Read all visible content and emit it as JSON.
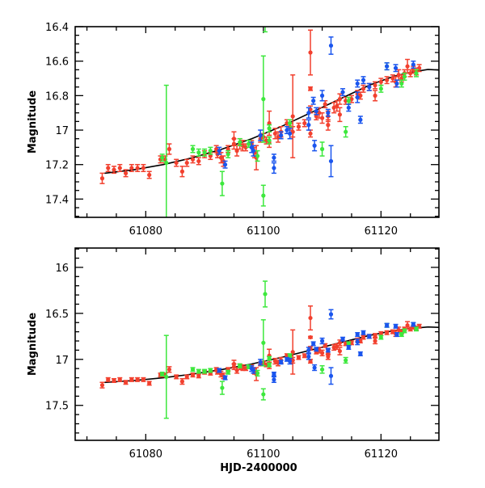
{
  "chart_data": {
    "type": "scatter",
    "xlabel": "HJD-2400000",
    "ylabel": "Magnitude",
    "x_ticks": [
      61080,
      61100,
      61120
    ],
    "x_tick_labels": [
      "61080",
      "61100",
      "61120"
    ],
    "xlim": [
      61068.0,
      61129.85
    ],
    "panels": [
      {
        "name": "top",
        "ylim": [
          16.4,
          17.506
        ],
        "y_inverted": true,
        "y_ticks": [
          16.4,
          16.6,
          16.8,
          17.0,
          17.2,
          17.4
        ],
        "y_tick_labels": [
          "16.4",
          "16.6",
          "16.8",
          "17",
          "17.2",
          "17.4"
        ],
        "y_minor_step": 0.05
      },
      {
        "name": "bottom",
        "ylim": [
          15.79,
          17.88
        ],
        "y_inverted": true,
        "y_ticks": [
          16.0,
          16.5,
          17.0,
          17.5
        ],
        "y_tick_labels": [
          "16",
          "16.5",
          "17",
          "17.5"
        ],
        "y_minor_step": 0.1
      }
    ],
    "x_minor_step": 5,
    "model_curve": {
      "name": "fit",
      "color": "#000000",
      "points": [
        [
          61073,
          17.25
        ],
        [
          61078,
          17.23
        ],
        [
          61083,
          17.2
        ],
        [
          61088,
          17.16
        ],
        [
          61093,
          17.11
        ],
        [
          61098,
          17.05
        ],
        [
          61103,
          16.98
        ],
        [
          61108,
          16.9
        ],
        [
          61113,
          16.82
        ],
        [
          61118,
          16.74
        ],
        [
          61122,
          16.69
        ],
        [
          61125,
          16.665
        ],
        [
          61128,
          16.648
        ],
        [
          61130,
          16.652
        ]
      ]
    },
    "series": [
      {
        "name": "red",
        "color": "#f2402e",
        "points_x_mag_err": [
          [
            61072.6,
            17.28,
            0.03
          ],
          [
            61073.6,
            17.22,
            0.02
          ],
          [
            61074.6,
            17.23,
            0.02
          ],
          [
            61075.6,
            17.22,
            0.02
          ],
          [
            61076.6,
            17.25,
            0.02
          ],
          [
            61077.6,
            17.22,
            0.02
          ],
          [
            61078.6,
            17.22,
            0.02
          ],
          [
            61079.6,
            17.22,
            0.02
          ],
          [
            61080.6,
            17.26,
            0.02
          ],
          [
            61082.5,
            17.17,
            0.02
          ],
          [
            61083.3,
            17.17,
            0.02
          ],
          [
            61084,
            17.11,
            0.03
          ],
          [
            61085.2,
            17.19,
            0.02
          ],
          [
            61086.2,
            17.24,
            0.03
          ],
          [
            61087,
            17.19,
            0.02
          ],
          [
            61088,
            17.17,
            0.02
          ],
          [
            61089,
            17.18,
            0.02
          ],
          [
            61090,
            17.14,
            0.02
          ],
          [
            61091,
            17.15,
            0.02
          ],
          [
            61092,
            17.11,
            0.02
          ],
          [
            61092.2,
            17.14,
            0.02
          ],
          [
            61092.8,
            17.16,
            0.03
          ],
          [
            61093.2,
            17.18,
            0.03
          ],
          [
            61094,
            17.11,
            0.02
          ],
          [
            61095,
            17.05,
            0.04
          ],
          [
            61095,
            17.08,
            0.03
          ],
          [
            61095.5,
            17.12,
            0.03
          ],
          [
            61096,
            17.08,
            0.03
          ],
          [
            61096.5,
            17.09,
            0.03
          ],
          [
            61097,
            17.1,
            0.02
          ],
          [
            61098,
            17.08,
            0.02
          ],
          [
            61098.5,
            17.13,
            0.03
          ],
          [
            61098.8,
            17.16,
            0.07
          ],
          [
            61099.5,
            17.05,
            0.02
          ],
          [
            61100,
            17.04,
            0.02
          ],
          [
            61100.5,
            17.06,
            0.02
          ],
          [
            61101,
            16.96,
            0.07
          ],
          [
            61101,
            17.07,
            0.03
          ],
          [
            61102,
            17.02,
            0.03
          ],
          [
            61102.5,
            17.04,
            0.03
          ],
          [
            61103,
            17.01,
            0.03
          ],
          [
            61104,
            16.96,
            0.02
          ],
          [
            61104.5,
            16.98,
            0.02
          ],
          [
            61105,
            16.92,
            0.24
          ],
          [
            61105,
            17.01,
            0.03
          ],
          [
            61106,
            16.98,
            0.02
          ],
          [
            61107,
            16.96,
            0.02
          ],
          [
            61108,
            16.55,
            0.13
          ],
          [
            61108,
            16.76,
            0.01
          ],
          [
            61108,
            16.88,
            0.02
          ],
          [
            61108,
            17.02,
            0.02
          ],
          [
            61109,
            16.92,
            0.02
          ],
          [
            61109.5,
            16.9,
            0.03
          ],
          [
            61110,
            16.93,
            0.03
          ],
          [
            61110.5,
            16.85,
            0.02
          ],
          [
            61111,
            16.97,
            0.03
          ],
          [
            61111,
            16.92,
            0.03
          ],
          [
            61112,
            16.87,
            0.03
          ],
          [
            61112.5,
            16.86,
            0.03
          ],
          [
            61113,
            16.82,
            0.03
          ],
          [
            61113,
            16.91,
            0.04
          ],
          [
            61114,
            16.83,
            0.02
          ],
          [
            61115,
            16.82,
            0.02
          ],
          [
            61116,
            16.79,
            0.02
          ],
          [
            61116.5,
            16.8,
            0.02
          ],
          [
            61117,
            16.76,
            0.02
          ],
          [
            61118,
            16.75,
            0.02
          ],
          [
            61119,
            16.74,
            0.02
          ],
          [
            61119,
            16.8,
            0.03
          ],
          [
            61120,
            16.72,
            0.02
          ],
          [
            61121,
            16.71,
            0.02
          ],
          [
            61122,
            16.7,
            0.02
          ],
          [
            61122.5,
            16.72,
            0.03
          ],
          [
            61123,
            16.68,
            0.03
          ],
          [
            61123.5,
            16.7,
            0.02
          ],
          [
            61124,
            16.67,
            0.02
          ],
          [
            61124.5,
            16.63,
            0.04
          ],
          [
            61125,
            16.67,
            0.02
          ],
          [
            61125.5,
            16.65,
            0.02
          ],
          [
            61126,
            16.66,
            0.02
          ],
          [
            61126.5,
            16.64,
            0.02
          ]
        ]
      },
      {
        "name": "green",
        "color": "#3de83d",
        "points_x_mag_err": [
          [
            61082.8,
            17.16,
            0.02
          ],
          [
            61083.5,
            17.19,
            0.45
          ],
          [
            61088,
            17.11,
            0.02
          ],
          [
            61089,
            17.13,
            0.02
          ],
          [
            61090,
            17.13,
            0.02
          ],
          [
            61091,
            17.12,
            0.02
          ],
          [
            61093,
            17.31,
            0.07
          ],
          [
            61094,
            17.14,
            0.02
          ],
          [
            61096,
            17.07,
            0.02
          ],
          [
            61097.5,
            17.08,
            0.02
          ],
          [
            61099,
            17.15,
            0.03
          ],
          [
            61100,
            16.82,
            0.25
          ],
          [
            61100,
            17.38,
            0.06
          ],
          [
            61100.3,
            16.29,
            0.14
          ],
          [
            61101,
            17.06,
            0.02
          ],
          [
            61101,
            16.99,
            0.02
          ],
          [
            61104.5,
            16.96,
            0.02
          ],
          [
            61110,
            17.11,
            0.04
          ],
          [
            61114,
            17.01,
            0.03
          ],
          [
            61114.5,
            16.83,
            0.02
          ],
          [
            61120,
            16.76,
            0.02
          ],
          [
            61121,
            16.63,
            0.02
          ],
          [
            61123.5,
            16.73,
            0.02
          ],
          [
            61124,
            16.69,
            0.02
          ],
          [
            61126,
            16.67,
            0.02
          ]
        ]
      },
      {
        "name": "blue",
        "color": "#1a55ee",
        "points_x_mag_err": [
          [
            61092.5,
            17.12,
            0.02
          ],
          [
            61093.5,
            17.2,
            0.02
          ],
          [
            61098,
            17.1,
            0.03
          ],
          [
            61098.3,
            17.12,
            0.03
          ],
          [
            61099.5,
            17.03,
            0.03
          ],
          [
            61101.8,
            17.16,
            0.02
          ],
          [
            61101.8,
            17.22,
            0.03
          ],
          [
            61103,
            17.03,
            0.02
          ],
          [
            61104,
            17.0,
            0.02
          ],
          [
            61104.5,
            17.02,
            0.03
          ],
          [
            61107.7,
            16.9,
            0.03
          ],
          [
            61107.7,
            16.97,
            0.03
          ],
          [
            61108.5,
            16.83,
            0.02
          ],
          [
            61108.7,
            17.09,
            0.03
          ],
          [
            61109,
            16.89,
            0.02
          ],
          [
            61110,
            16.8,
            0.03
          ],
          [
            61111,
            16.9,
            0.02
          ],
          [
            61111.5,
            16.51,
            0.05
          ],
          [
            61111.5,
            17.18,
            0.09
          ],
          [
            61113.5,
            16.78,
            0.02
          ],
          [
            61114.5,
            16.87,
            0.02
          ],
          [
            61116,
            16.73,
            0.02
          ],
          [
            61116.5,
            16.94,
            0.02
          ],
          [
            61116,
            16.81,
            0.03
          ],
          [
            61117,
            16.71,
            0.02
          ],
          [
            61118,
            16.75,
            0.02
          ],
          [
            61121,
            16.63,
            0.02
          ],
          [
            61122.5,
            16.64,
            0.02
          ],
          [
            61122.7,
            16.73,
            0.02
          ],
          [
            61125.5,
            16.62,
            0.02
          ]
        ]
      }
    ]
  }
}
